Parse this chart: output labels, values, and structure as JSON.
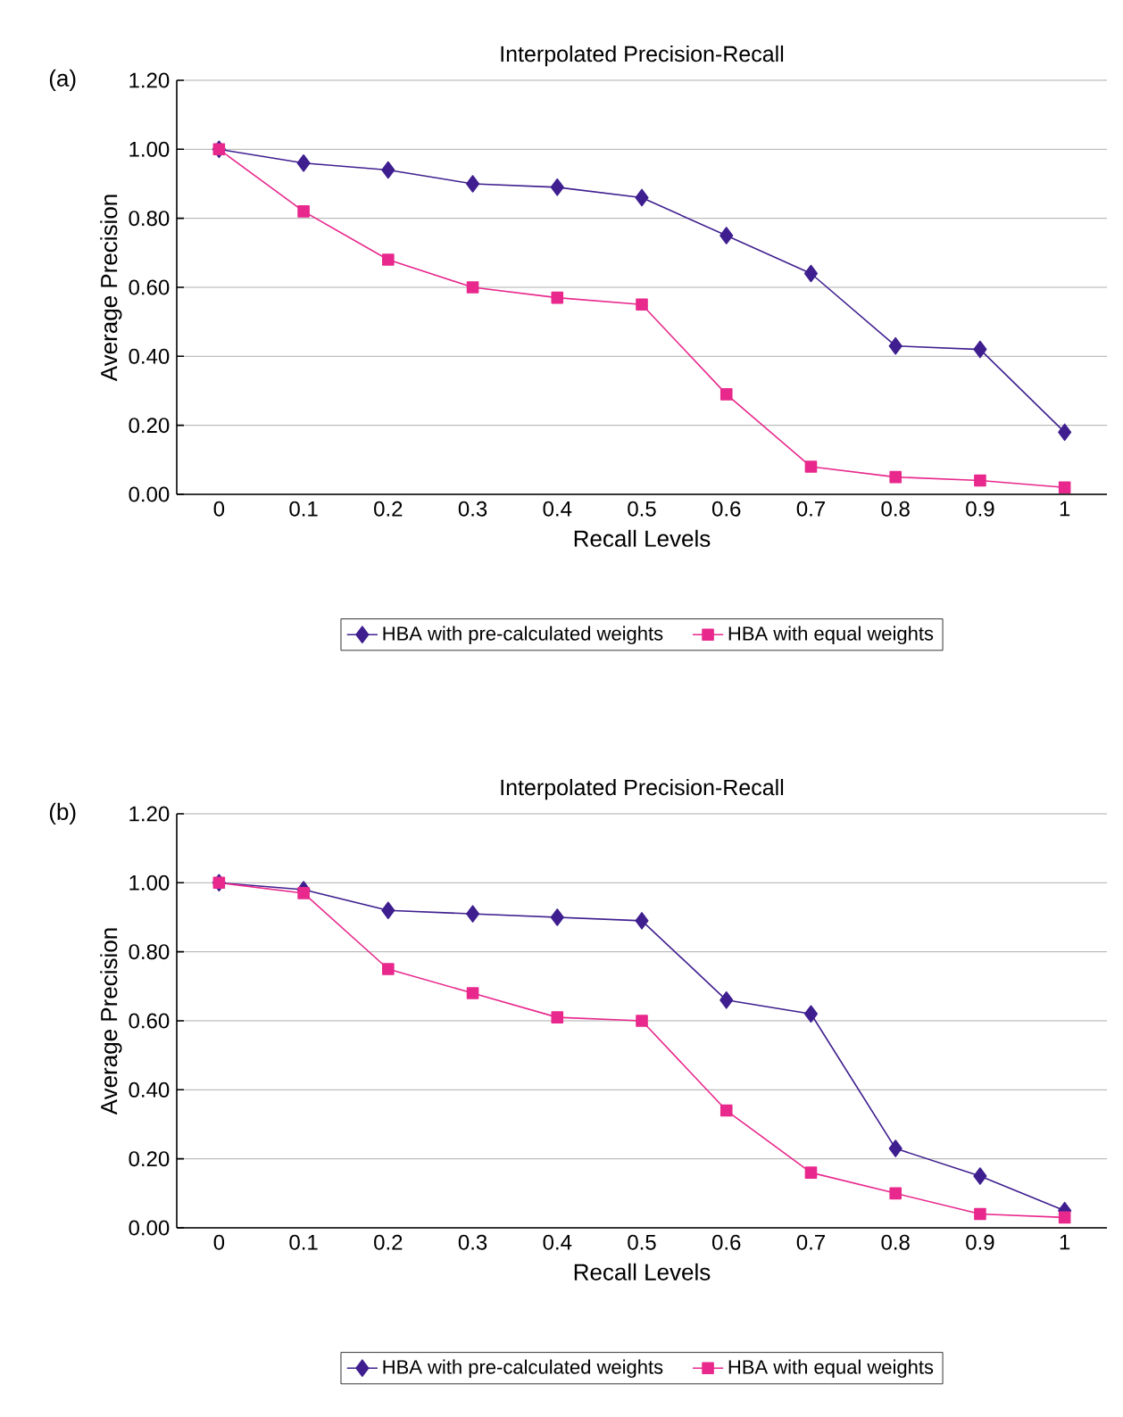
{
  "chart_data": [
    {
      "type": "line",
      "title": "Interpolated Precision-Recall",
      "annotations": [
        "(a)"
      ],
      "xlabel": "Recall Levels",
      "ylabel": "Average Precision",
      "categories": [
        "0",
        "0.1",
        "0.2",
        "0.3",
        "0.4",
        "0.5",
        "0.6",
        "0.7",
        "0.8",
        "0.9",
        "1"
      ],
      "series": [
        {
          "name": "HBA with pre-calculated weights",
          "color": "#3f1f8f",
          "marker": "diamond",
          "values": [
            1.0,
            0.96,
            0.94,
            0.9,
            0.89,
            0.86,
            0.75,
            0.64,
            0.43,
            0.42,
            0.18
          ]
        },
        {
          "name": "HBA with equal weights",
          "color": "#e8288c",
          "marker": "square",
          "values": [
            1.0,
            0.82,
            0.68,
            0.6,
            0.57,
            0.55,
            0.29,
            0.08,
            0.05,
            0.04,
            0.02
          ]
        }
      ],
      "ylim": [
        0,
        1.2
      ],
      "yticks": [
        {
          "value": 0,
          "label": "0.00"
        },
        {
          "value": 0.2,
          "label": "0.20"
        },
        {
          "value": 0.4,
          "label": "0.40"
        },
        {
          "value": 0.6,
          "label": "0.60"
        },
        {
          "value": 0.8,
          "label": "0.80"
        },
        {
          "value": 1.0,
          "label": "1.00"
        },
        {
          "value": 1.2,
          "label": "1.20"
        }
      ],
      "grid": "y",
      "legend": "bottom"
    },
    {
      "type": "line",
      "title": "Interpolated Precision-Recall",
      "annotations": [
        "(b)"
      ],
      "xlabel": "Recall Levels",
      "ylabel": "Average Precision",
      "categories": [
        "0",
        "0.1",
        "0.2",
        "0.3",
        "0.4",
        "0.5",
        "0.6",
        "0.7",
        "0.8",
        "0.9",
        "1"
      ],
      "series": [
        {
          "name": "HBA with pre-calculated weights",
          "color": "#3f1f8f",
          "marker": "diamond",
          "values": [
            1.0,
            0.98,
            0.92,
            0.91,
            0.9,
            0.89,
            0.66,
            0.62,
            0.23,
            0.15,
            0.05
          ]
        },
        {
          "name": "HBA with equal weights",
          "color": "#e8288c",
          "marker": "square",
          "values": [
            1.0,
            0.97,
            0.75,
            0.68,
            0.61,
            0.6,
            0.34,
            0.16,
            0.1,
            0.04,
            0.03
          ]
        }
      ],
      "ylim": [
        0,
        1.2
      ],
      "yticks": [
        {
          "value": 0,
          "label": "0.00"
        },
        {
          "value": 0.2,
          "label": "0.20"
        },
        {
          "value": 0.4,
          "label": "0.40"
        },
        {
          "value": 0.6,
          "label": "0.60"
        },
        {
          "value": 0.8,
          "label": "0.80"
        },
        {
          "value": 1.0,
          "label": "1.00"
        },
        {
          "value": 1.2,
          "label": "1.20"
        }
      ],
      "grid": "y",
      "legend": "bottom"
    }
  ]
}
